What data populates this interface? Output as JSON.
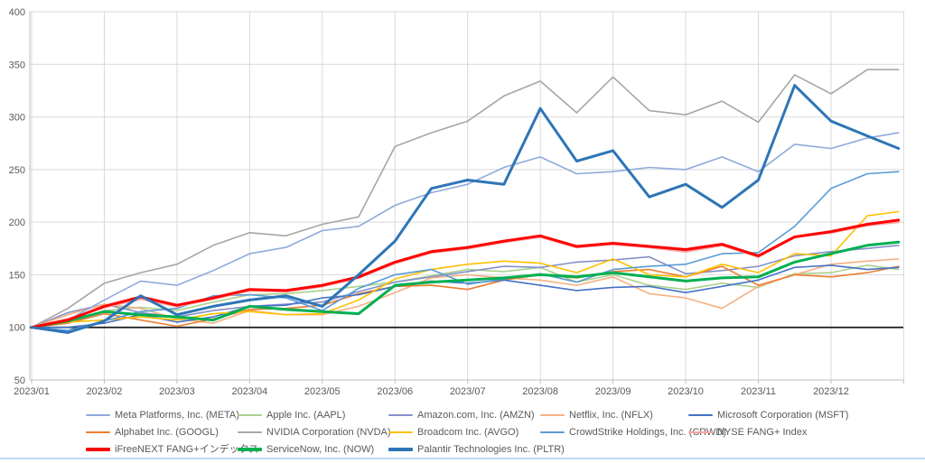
{
  "chart_data": {
    "type": "line",
    "title": "",
    "xlabel": "",
    "ylabel": "",
    "ylim": [
      50,
      400
    ],
    "y_ticks": [
      400,
      350,
      300,
      250,
      200,
      150,
      100,
      50
    ],
    "baseline_value": 100,
    "grid": "on",
    "legend_position": "bottom",
    "x_tick_labels": [
      "2023/01",
      "2023/02",
      "2023/03",
      "2023/04",
      "2023/05",
      "2023/06",
      "2023/07",
      "2023/08",
      "2023/09",
      "2023/10",
      "2023/11",
      "2023/12"
    ],
    "x_months": [
      0,
      0.5,
      1,
      1.5,
      2,
      2.5,
      3,
      3.5,
      4,
      4.5,
      5,
      5.5,
      6,
      6.5,
      7,
      7.5,
      8,
      8.5,
      9,
      9.5,
      10,
      10.5,
      11,
      11.5,
      11.93
    ],
    "series": [
      {
        "name": "Meta Platforms, Inc. (META)",
        "ticker": "META",
        "color": "#8faadc",
        "width": 1.6,
        "values": [
          100,
          107,
          126,
          144,
          140,
          154,
          170,
          176,
          192,
          196,
          216,
          228,
          236,
          252,
          262,
          246,
          248,
          252,
          250,
          262,
          248,
          274,
          270,
          280,
          285
        ]
      },
      {
        "name": "Apple Inc. (AAPL)",
        "ticker": "AAPL",
        "color": "#a9d18e",
        "width": 1.6,
        "values": [
          100,
          104,
          116,
          119,
          116,
          124,
          131,
          132,
          135,
          139,
          143,
          149,
          155,
          153,
          157,
          143,
          150,
          140,
          136,
          142,
          138,
          151,
          152,
          159,
          155
        ]
      },
      {
        "name": "Amazon.com, Inc. (AMZN)",
        "ticker": "AMZN",
        "color": "#8490c8",
        "width": 1.6,
        "values": [
          100,
          114,
          122,
          114,
          110,
          116,
          120,
          122,
          124,
          134,
          143,
          148,
          153,
          158,
          157,
          162,
          164,
          167,
          151,
          154,
          158,
          168,
          172,
          175,
          178
        ]
      },
      {
        "name": "Netflix, Inc. (NFLX)",
        "ticker": "NFLX",
        "color": "#f4b183",
        "width": 1.6,
        "values": [
          100,
          112,
          122,
          118,
          108,
          104,
          116,
          112,
          112,
          120,
          133,
          147,
          150,
          147,
          145,
          140,
          148,
          132,
          128,
          118,
          139,
          150,
          160,
          163,
          165
        ]
      },
      {
        "name": "Microsoft Corporation (MSFT)",
        "ticker": "MSFT",
        "color": "#4472c4",
        "width": 1.6,
        "values": [
          100,
          100,
          104,
          112,
          105,
          110,
          120,
          121,
          128,
          131,
          139,
          144,
          142,
          145,
          140,
          135,
          138,
          139,
          133,
          139,
          145,
          157,
          159,
          155,
          157
        ]
      },
      {
        "name": "Alphabet Inc. (GOOGL)",
        "ticker": "GOOGL",
        "color": "#ed7d31",
        "width": 1.6,
        "values": [
          100,
          104,
          113,
          107,
          101,
          108,
          117,
          118,
          121,
          132,
          139,
          140,
          136,
          145,
          150,
          147,
          153,
          155,
          148,
          158,
          140,
          150,
          148,
          152,
          158
        ]
      },
      {
        "name": "NVIDIA Corporation (NVDA)",
        "ticker": "NVDA",
        "color": "#a6a6a6",
        "width": 1.6,
        "values": [
          100,
          118,
          142,
          152,
          160,
          178,
          190,
          187,
          198,
          205,
          272,
          285,
          296,
          320,
          334,
          304,
          338,
          306,
          302,
          315,
          295,
          340,
          322,
          345,
          345
        ]
      },
      {
        "name": "Broadcom Inc. (AVGO)",
        "ticker": "AVGO",
        "color": "#ffc000",
        "width": 1.6,
        "values": [
          100,
          105,
          107,
          110,
          107,
          113,
          115,
          112,
          113,
          126,
          146,
          155,
          160,
          163,
          161,
          152,
          165,
          150,
          148,
          160,
          152,
          170,
          168,
          206,
          210
        ]
      },
      {
        "name": "CrowdStrike Holdings, Inc. (CRWD)",
        "ticker": "CRWD",
        "color": "#5b9bd5",
        "width": 1.6,
        "values": [
          100,
          97,
          106,
          115,
          118,
          130,
          131,
          128,
          116,
          137,
          150,
          155,
          141,
          146,
          151,
          143,
          155,
          158,
          160,
          170,
          171,
          196,
          232,
          246,
          248
        ]
      },
      {
        "name": "NYSE FANG+ Index",
        "ticker": "NYSE-FANG",
        "color": "#f8a5a5",
        "width": 2.4,
        "values": [
          100,
          108,
          119,
          127,
          120,
          127,
          135,
          134,
          139,
          147,
          161,
          171,
          175,
          181,
          186,
          176,
          179,
          176,
          172,
          178,
          167,
          186,
          190,
          197,
          200
        ]
      },
      {
        "name": "iFreeNEXT FANG+インデックス",
        "ticker": "IFREENEXT-FANG",
        "color": "#ff0000",
        "width": 3,
        "values": [
          100,
          107,
          120,
          129,
          121,
          128,
          136,
          135,
          140,
          148,
          162,
          172,
          176,
          182,
          187,
          177,
          180,
          177,
          174,
          179,
          168,
          186,
          191,
          198,
          202
        ]
      },
      {
        "name": "ServiceNow, Inc. (NOW)",
        "ticker": "NOW",
        "color": "#00b050",
        "width": 3,
        "values": [
          100,
          106,
          115,
          112,
          110,
          107,
          120,
          117,
          115,
          113,
          140,
          143,
          145,
          147,
          150,
          148,
          152,
          148,
          144,
          147,
          148,
          162,
          170,
          178,
          181
        ]
      },
      {
        "name": "Palantir Technologies Inc. (PLTR)",
        "ticker": "PLTR",
        "color": "#2e75b6",
        "width": 3,
        "values": [
          100,
          95,
          106,
          130,
          112,
          120,
          126,
          130,
          120,
          150,
          182,
          232,
          240,
          236,
          308,
          258,
          268,
          224,
          236,
          214,
          240,
          330,
          296,
          282,
          270
        ]
      }
    ],
    "draw_order": [
      "AAPL",
      "AMZN",
      "NFLX",
      "GOOGL",
      "MSFT",
      "AVGO",
      "CRWD",
      "META",
      "NVDA",
      "NYSE-FANG",
      "NOW",
      "IFREENEXT-FANG",
      "PLTR"
    ],
    "legend_order": [
      "META",
      "AAPL",
      "AMZN",
      "NFLX",
      "MSFT",
      "GOOGL",
      "NVDA",
      "AVGO",
      "CRWD",
      "NYSE-FANG",
      "IFREENEXT-FANG",
      "NOW",
      "PLTR"
    ]
  },
  "style": {
    "gridline_color": "#d9d9d9",
    "axis_color": "#bfbfbf",
    "baseline_color": "#1a1a1a",
    "label_color": "#595959",
    "bottom_border_color": "#bdd7ee",
    "background": "#ffffff"
  }
}
